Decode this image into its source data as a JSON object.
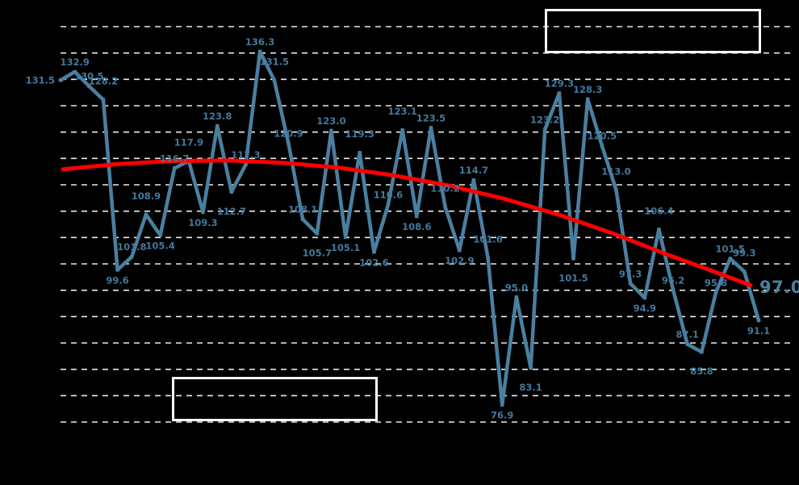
{
  "chart_data": {
    "type": "line",
    "title": "",
    "xlabel": "",
    "ylabel": "",
    "ylim": [
      74,
      140.5
    ],
    "grid": "horizontal-dashed",
    "gridline_count": 16,
    "series": [
      {
        "name": "monthly-index",
        "color": "#4a7f9f",
        "values": [
          131.5,
          132.9,
          130.5,
          128.2,
          99.6,
          101.8,
          108.9,
          105.4,
          116.7,
          117.9,
          109.3,
          123.8,
          112.7,
          117.3,
          136.3,
          131.5,
          120.9,
          108.1,
          105.7,
          123.0,
          105.1,
          119.3,
          102.6,
          110.6,
          123.1,
          108.6,
          123.5,
          110.2,
          102.9,
          114.7,
          101.6,
          76.9,
          95.0,
          83.1,
          123.2,
          129.3,
          101.5,
          128.3,
          120.5,
          113.0,
          97.3,
          94.9,
          106.4,
          96.2,
          87.1,
          85.8,
          95.8,
          101.5,
          99.3,
          91.1
        ],
        "point_labels": [
          "131.5",
          "132.9",
          "130.5",
          "128.2",
          "99.6",
          "101.8",
          "108.9",
          "105.4",
          "116.7",
          "117.9",
          "109.3",
          "123.8",
          "112.7",
          "117.3",
          "136.3",
          "131.5",
          "120.9",
          "108.1",
          "105.7",
          "123.0",
          "105.1",
          "119.3",
          "102.6",
          "110.6",
          "123.1",
          "108.6",
          "123.5",
          "110.2",
          "102.9",
          "114.7",
          "101.6",
          "76.9",
          "95.0",
          "83.1",
          "123.2",
          "129.3",
          "101.5",
          "128.3",
          "120.5",
          "113.0",
          "97.3",
          "94.9",
          "106.4",
          "96.2",
          "87.1",
          "85.8",
          "95.8",
          "101.5",
          "99.3",
          "91.1"
        ]
      }
    ],
    "trend": {
      "name": "polynomial-trend",
      "color": "#ff0000",
      "end_label": "97.0",
      "points": [
        {
          "x": 0.0,
          "v": 116.5
        },
        {
          "x": 0.08,
          "v": 117.4
        },
        {
          "x": 0.16,
          "v": 117.9
        },
        {
          "x": 0.24,
          "v": 118.0
        },
        {
          "x": 0.32,
          "v": 117.6
        },
        {
          "x": 0.4,
          "v": 116.8
        },
        {
          "x": 0.48,
          "v": 115.5
        },
        {
          "x": 0.56,
          "v": 113.8
        },
        {
          "x": 0.64,
          "v": 111.6
        },
        {
          "x": 0.72,
          "v": 108.9
        },
        {
          "x": 0.8,
          "v": 105.7
        },
        {
          "x": 0.88,
          "v": 102.1
        },
        {
          "x": 0.94,
          "v": 99.6
        },
        {
          "x": 1.0,
          "v": 97.0
        }
      ]
    },
    "colors": {
      "background": "#000000",
      "gridline": "#ffffff",
      "series": "#4a7f9f",
      "labels": "#43789c",
      "trend": "#ff0000"
    }
  },
  "annotations": {
    "top_box_text": "",
    "bottom_box_text": ""
  }
}
